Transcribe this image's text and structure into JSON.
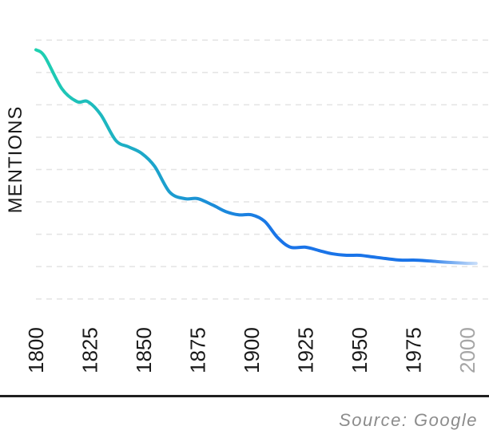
{
  "chart_data": {
    "type": "line",
    "ylabel": "MENTIONS",
    "xlabel": "",
    "x_ticks": [
      "1800",
      "1825",
      "1850",
      "1875",
      "1900",
      "1925",
      "1950",
      "1975",
      "2000"
    ],
    "x_tick_colors": [
      "#1a1a1a",
      "#1a1a1a",
      "#1a1a1a",
      "#1a1a1a",
      "#1a1a1a",
      "#1a1a1a",
      "#1a1a1a",
      "#1a1a1a",
      "#a6a6a6"
    ],
    "xlim": [
      1800,
      2010
    ],
    "ylim": [
      0,
      9
    ],
    "grid": true,
    "series": [
      {
        "x": [
          1800,
          1804,
          1812,
          1819,
          1824,
          1830,
          1837,
          1843,
          1849,
          1855,
          1862,
          1869,
          1875,
          1882,
          1888,
          1894,
          1900,
          1906,
          1912,
          1918,
          1925,
          1931,
          1937,
          1944,
          1950,
          1956,
          1962,
          1969,
          1975,
          1981,
          1987,
          1994,
          2000,
          2004
        ],
        "y": [
          8.2,
          8.0,
          7.0,
          6.6,
          6.6,
          6.2,
          5.4,
          5.2,
          5.0,
          4.6,
          3.8,
          3.6,
          3.6,
          3.4,
          3.2,
          3.1,
          3.1,
          2.9,
          2.4,
          2.1,
          2.1,
          2.0,
          1.9,
          1.85,
          1.85,
          1.8,
          1.75,
          1.7,
          1.7,
          1.68,
          1.65,
          1.62,
          1.6,
          1.6
        ],
        "color_start": "#1fd1b0",
        "color_end": "#1a74e8"
      }
    ]
  },
  "footer": {
    "source": "Source: Google"
  }
}
